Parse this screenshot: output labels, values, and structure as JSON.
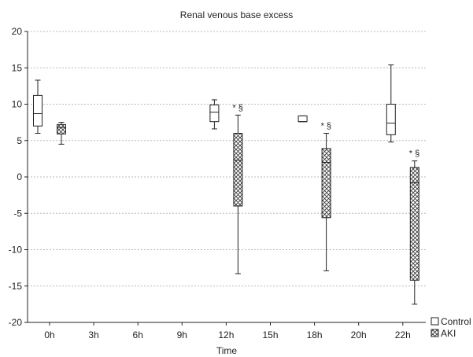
{
  "chart_data": {
    "type": "box",
    "title": "Renal venous base excess",
    "xlabel": "Time",
    "ylabel": "",
    "ylim": [
      -20,
      20
    ],
    "yticks": [
      -20,
      -15,
      -10,
      -5,
      0,
      5,
      10,
      15,
      20
    ],
    "categories": [
      "0h",
      "3h",
      "6h",
      "9h",
      "12h",
      "15h",
      "18h",
      "20h",
      "22h"
    ],
    "grid": "horizontal dotted",
    "legend_position": "bottom-right",
    "series": [
      {
        "name": "Control",
        "pattern": "plain",
        "boxes": [
          {
            "category": "0h",
            "min": 6.0,
            "q1": 7.0,
            "median": 8.7,
            "q3": 11.2,
            "max": 13.3
          },
          {
            "category": "12h",
            "min": 6.6,
            "q1": 7.6,
            "median": 8.9,
            "q3": 9.9,
            "max": 10.6
          },
          {
            "category": "18h",
            "min": 7.6,
            "q1": 7.6,
            "median": 7.6,
            "q3": 8.4,
            "max": 8.4
          },
          {
            "category": "22h",
            "min": 4.8,
            "q1": 5.8,
            "median": 7.4,
            "q3": 10.0,
            "max": 15.4
          }
        ]
      },
      {
        "name": "AKI",
        "pattern": "crosshatch",
        "boxes": [
          {
            "category": "0h",
            "min": 4.5,
            "q1": 5.9,
            "median": 6.8,
            "q3": 7.2,
            "max": 7.5,
            "annotation": ""
          },
          {
            "category": "12h",
            "min": -13.3,
            "q1": -4.0,
            "median": 2.3,
            "q3": 6.0,
            "max": 8.5,
            "annotation": "* §"
          },
          {
            "category": "18h",
            "min": -12.9,
            "q1": -5.6,
            "median": 2.0,
            "q3": 3.9,
            "max": 6.0,
            "annotation": "* §"
          },
          {
            "category": "22h",
            "min": -17.5,
            "q1": -14.2,
            "median": -0.8,
            "q3": 1.3,
            "max": 2.2,
            "annotation": "* §"
          }
        ]
      }
    ]
  }
}
